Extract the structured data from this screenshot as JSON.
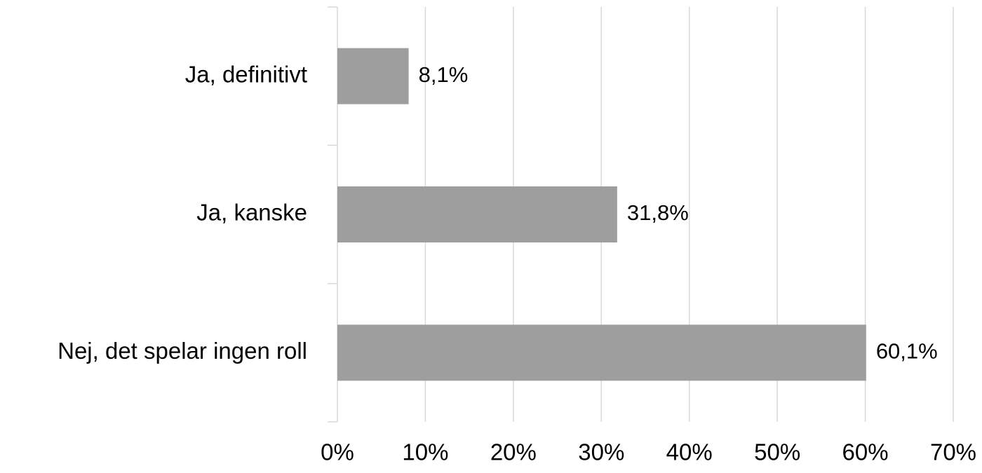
{
  "chart_data": {
    "type": "bar",
    "orientation": "horizontal",
    "categories": [
      "Ja, definitivt",
      "Ja, kanske",
      "Nej, det spelar ingen roll"
    ],
    "values": [
      8.1,
      31.8,
      60.1
    ],
    "data_labels": [
      "8,1%",
      "31,8%",
      "60,1%"
    ],
    "x_ticks": [
      0,
      10,
      20,
      30,
      40,
      50,
      60,
      70
    ],
    "x_tick_labels": [
      "0%",
      "10%",
      "20%",
      "30%",
      "40%",
      "50%",
      "60%",
      "70%"
    ],
    "xlim": [
      0,
      70
    ],
    "title": "",
    "xlabel": "",
    "ylabel": "",
    "grid": "vertical",
    "legend": "none",
    "bar_color": "#9e9e9e",
    "gridline_color": "#d9d9d9"
  }
}
